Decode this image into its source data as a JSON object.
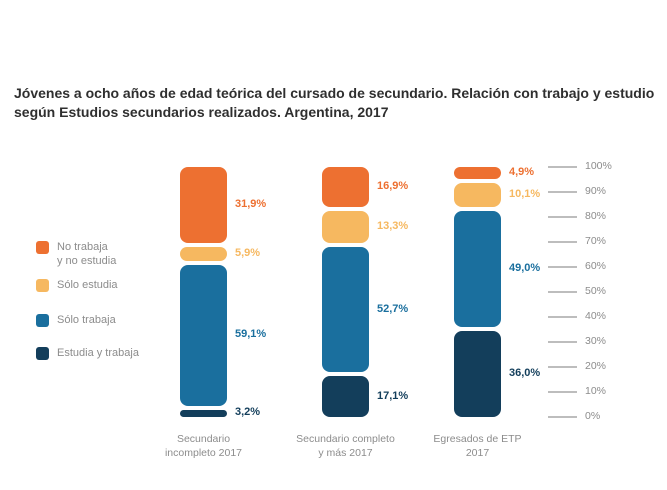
{
  "title": "Jóvenes a ocho años de edad teórica del cursado de secundario. Relación con trabajo y estudio según Estudios secundarios realizados. Argentina, 2017",
  "colors": {
    "no_trabaja_no_estudia": "#ED7031",
    "solo_estudia": "#F6B860",
    "solo_trabaja": "#1A6F9E",
    "estudia_y_trabaja": "#133E5B",
    "axis_text": "#8C8C8C",
    "tick_line": "#BDBDBD",
    "title_text": "#2F2F2F"
  },
  "legend": {
    "position": "left",
    "items": [
      {
        "label": "No trabaja y no estudia",
        "label_lines": [
          "No trabaja",
          "y no estudia"
        ],
        "color": "#ED7031"
      },
      {
        "label": "Sólo estudia",
        "label_lines": [
          "Sólo estudia"
        ],
        "color": "#F6B860"
      },
      {
        "label": "Sólo trabaja",
        "label_lines": [
          "Sólo trabaja"
        ],
        "color": "#1A6F9E"
      },
      {
        "label": "Estudia y trabaja",
        "label_lines": [
          "Estudia y trabaja"
        ],
        "color": "#133E5B"
      }
    ]
  },
  "chart_data": {
    "type": "bar",
    "stacked": true,
    "title": "Jóvenes a ocho años de edad teórica del cursado de secundario. Relación con trabajo y estudio según Estudios secundarios realizados. Argentina, 2017",
    "categories": [
      "Secundario incompleto 2017",
      "Secundario completo y más 2017",
      "Egresados de ETP 2017"
    ],
    "category_lines": [
      [
        "Secundario",
        "incompleto 2017"
      ],
      [
        "Secundario completo",
        "y más 2017"
      ],
      [
        "Egresados de ETP",
        "2017"
      ]
    ],
    "series": [
      {
        "name": "No trabaja y no estudia",
        "color": "#ED7031",
        "values": [
          31.9,
          16.9,
          4.9
        ],
        "labels": [
          "31,9%",
          "16,9%",
          "4,9%"
        ]
      },
      {
        "name": "Sólo estudia",
        "color": "#F6B860",
        "values": [
          5.9,
          13.3,
          10.1
        ],
        "labels": [
          "5,9%",
          "13,3%",
          "10,1%"
        ]
      },
      {
        "name": "Sólo trabaja",
        "color": "#1A6F9E",
        "values": [
          59.1,
          52.7,
          49.0
        ],
        "labels": [
          "59,1%",
          "52,7%",
          "49,0%"
        ]
      },
      {
        "name": "Estudia y trabaja",
        "color": "#133E5B",
        "values": [
          3.2,
          17.1,
          36.0
        ],
        "labels": [
          "3,2%",
          "17,1%",
          "36,0%"
        ]
      }
    ],
    "y_axis": {
      "position": "right",
      "min": 0,
      "max": 100,
      "ticks": [
        "100%",
        "90%",
        "80%",
        "70%",
        "60%",
        "50%",
        "40%",
        "30%",
        "20%",
        "10%",
        "0%"
      ]
    },
    "grid": false,
    "legend_position": "left"
  }
}
